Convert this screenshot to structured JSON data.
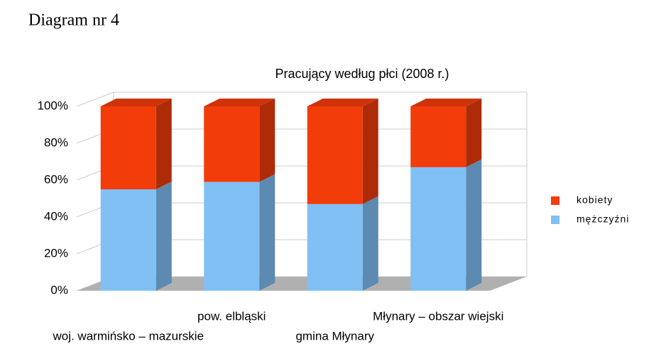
{
  "heading": "Diagram nr 4",
  "chart_data": {
    "type": "bar3d_stacked",
    "title": "Pracujący według płci (2008 r.)",
    "categories": [
      "woj. warmińsko – mazurskie",
      "pow. elbląski",
      "gmina Młynary",
      "Młynary – obszar wiejski"
    ],
    "series": [
      {
        "name": "mężczyźni",
        "color": "#80c0f4",
        "values": [
          55,
          59,
          47,
          67
        ]
      },
      {
        "name": "kobiety",
        "color": "#f23c0a",
        "values": [
          45,
          41,
          53,
          33
        ]
      }
    ],
    "ylim": [
      0,
      100
    ],
    "yticks": [
      {
        "value": 0,
        "label": "0%"
      },
      {
        "value": 20,
        "label": "20%"
      },
      {
        "value": 40,
        "label": "40%"
      },
      {
        "value": 60,
        "label": "60%"
      },
      {
        "value": 80,
        "label": "80%"
      },
      {
        "value": 100,
        "label": "100%"
      }
    ],
    "grid": true,
    "legend": "right"
  }
}
